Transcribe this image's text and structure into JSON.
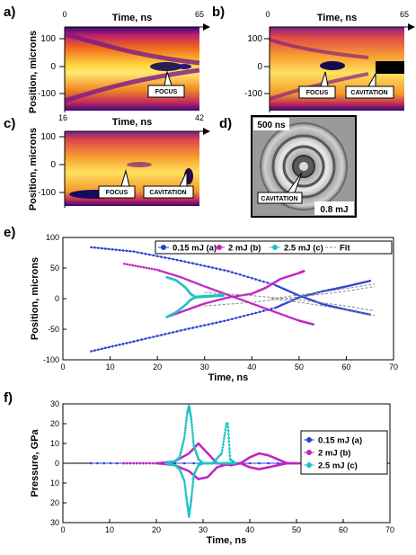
{
  "figure": {
    "panel_a": {
      "label": "a)",
      "xlabel": "Time, ns",
      "x_start": "0",
      "x_end": "65",
      "ylabel": "Position, microns",
      "yticks": [
        "100",
        "0",
        "-100"
      ],
      "callouts": [
        "FOCUS"
      ]
    },
    "panel_b": {
      "label": "b)",
      "xlabel": "Time, ns",
      "x_start": "0",
      "x_end": "65",
      "yticks": [
        "100",
        "0",
        "-100"
      ],
      "callouts": [
        "FOCUS",
        "CAVITATION"
      ]
    },
    "panel_c": {
      "label": "c)",
      "xlabel": "Time, ns",
      "x_start": "16",
      "x_end": "42",
      "ylabel": "Position, microns",
      "yticks": [
        "100",
        "0",
        "-100"
      ],
      "callouts": [
        "FOCUS",
        "CAVITATION"
      ]
    },
    "panel_d": {
      "label": "d)",
      "time_tag": "500 ns",
      "energy_tag": "0.8 mJ",
      "callout": "CAVITATION"
    },
    "panel_e": {
      "label": "e)"
    },
    "panel_f": {
      "label": "f)"
    }
  },
  "chart_data": [
    {
      "type": "scatter",
      "panel": "e",
      "xlabel": "Time, ns",
      "ylabel": "Position, microns",
      "xlim": [
        0,
        70
      ],
      "ylim": [
        -100,
        100
      ],
      "xticks": [
        0,
        10,
        20,
        30,
        40,
        50,
        60,
        70
      ],
      "yticks": [
        -100,
        -50,
        0,
        50,
        100
      ],
      "legend_position": "top-right",
      "series": [
        {
          "name": "0.15 mJ (a)",
          "color": "#2b3fd6",
          "marker": "dot",
          "lines": [
            {
              "x": [
                6,
                15,
                25,
                35,
                45,
                50,
                55,
                60,
                65
              ],
              "y": [
                84,
                77,
                62,
                45,
                22,
                5,
                -9,
                -18,
                -26
              ]
            },
            {
              "x": [
                6,
                15,
                25,
                35,
                45,
                50,
                55,
                60,
                65
              ],
              "y": [
                -86,
                -70,
                -52,
                -35,
                -15,
                2,
                12,
                20,
                29
              ]
            }
          ]
        },
        {
          "name": "2 mJ (b)",
          "color": "#c223c2",
          "marker": "dot",
          "lines": [
            {
              "x": [
                13,
                20,
                25,
                30,
                35,
                40,
                45,
                50,
                53
              ],
              "y": [
                57,
                47,
                35,
                20,
                6,
                -8,
                -22,
                -36,
                -42
              ]
            },
            {
              "x": [
                22,
                26,
                30,
                35,
                40,
                43,
                46,
                50,
                51
              ],
              "y": [
                -30,
                -19,
                -8,
                2,
                8,
                18,
                32,
                42,
                45
              ]
            }
          ]
        },
        {
          "name": "2.5 mJ (c)",
          "color": "#1ec4c4",
          "marker": "dot",
          "lines": [
            {
              "x": [
                22,
                24,
                26,
                27,
                28,
                30,
                32,
                34
              ],
              "y": [
                35,
                30,
                18,
                8,
                3,
                4,
                5,
                6
              ]
            },
            {
              "x": [
                22,
                24,
                26,
                27,
                28,
                30,
                32,
                34
              ],
              "y": [
                -30,
                -22,
                -10,
                -2,
                2,
                3,
                4,
                5
              ]
            }
          ]
        },
        {
          "name": "Fit",
          "color": "#888888",
          "marker": "dash",
          "lines": [
            {
              "x": [
                30,
                40,
                50,
                60,
                66
              ],
              "y": [
                10,
                5,
                -2,
                -12,
                -20
              ]
            },
            {
              "x": [
                30,
                40,
                50,
                60,
                66
              ],
              "y": [
                -12,
                -6,
                3,
                12,
                20
              ]
            },
            {
              "x": [
                44,
                50,
                56,
                62,
                66
              ],
              "y": [
                0,
                -6,
                -13,
                -22,
                -28
              ]
            },
            {
              "x": [
                44,
                50,
                56,
                62,
                66
              ],
              "y": [
                0,
                6,
                12,
                19,
                24
              ]
            }
          ]
        }
      ]
    },
    {
      "type": "line",
      "panel": "f",
      "xlabel": "Time, ns",
      "ylabel": "Pressure, GPa",
      "xlim": [
        0,
        70
      ],
      "ylim": [
        -30,
        30
      ],
      "xticks": [
        0,
        10,
        20,
        30,
        40,
        50,
        60,
        70
      ],
      "yticks": [
        30,
        20,
        10,
        0,
        10,
        20,
        30
      ],
      "legend_position": "top-right",
      "series": [
        {
          "name": "0.15 mJ (a)",
          "color": "#2b3fd6",
          "lines": [
            {
              "x": [
                6,
                20,
                40,
                60,
                66
              ],
              "y": [
                0,
                0,
                0,
                0,
                0
              ]
            }
          ]
        },
        {
          "name": "2 mJ (b)",
          "color": "#c223c2",
          "lines": [
            {
              "x": [
                13,
                20,
                24,
                27,
                29,
                31,
                33,
                36,
                38,
                40,
                42,
                44,
                46,
                48,
                50,
                53
              ],
              "y": [
                0,
                0,
                1,
                5,
                10,
                5,
                0,
                -1,
                0,
                3,
                5,
                4,
                2,
                0,
                0,
                0
              ]
            },
            {
              "x": [
                13,
                20,
                24,
                27,
                29,
                31,
                33,
                36,
                38,
                40,
                42,
                44,
                46,
                48,
                50,
                53
              ],
              "y": [
                0,
                0,
                -1,
                -4,
                -8,
                -7,
                -2,
                0,
                0,
                -2,
                -3,
                -2,
                -1,
                0,
                0,
                0
              ]
            }
          ]
        },
        {
          "name": "2.5 mJ (c)",
          "color": "#1ec4c4",
          "lines": [
            {
              "x": [
                22,
                24,
                25,
                26,
                26.6,
                27,
                27.5,
                28,
                29,
                30,
                32,
                34,
                35,
                35.3,
                35.8,
                37
              ],
              "y": [
                0,
                1,
                3,
                13,
                25,
                29,
                22,
                9,
                2,
                0,
                0,
                5,
                20,
                20,
                2,
                0
              ]
            },
            {
              "x": [
                22,
                24,
                25,
                26,
                26.6,
                27,
                27.5,
                28,
                29,
                30,
                32,
                34,
                35,
                35.3,
                35.8,
                37
              ],
              "y": [
                0,
                -1,
                -3,
                -9,
                -20,
                -27,
                -18,
                -6,
                -1,
                0,
                0,
                0,
                0,
                0,
                0,
                0
              ]
            }
          ]
        }
      ]
    }
  ]
}
